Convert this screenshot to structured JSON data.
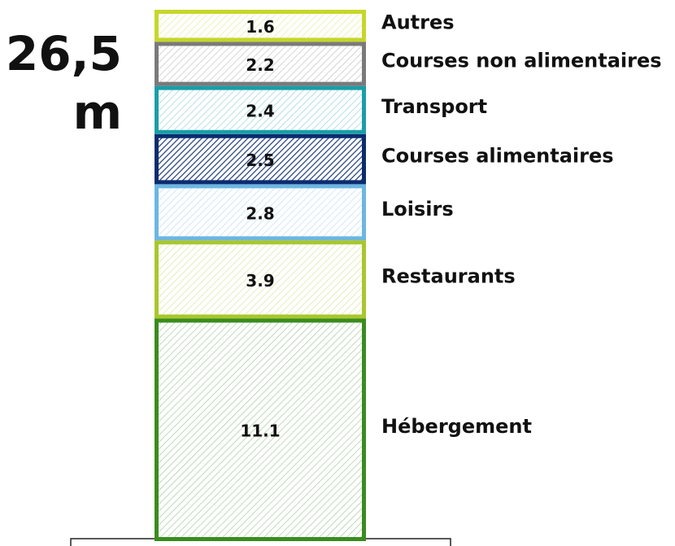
{
  "chart_data": {
    "type": "bar",
    "stacked": true,
    "title": "26,5 m",
    "categories": [
      null
    ],
    "series": [
      {
        "name": "Hébergement",
        "color": "#3a8c1f",
        "values": [
          11.1
        ]
      },
      {
        "name": "Restaurants",
        "color": "#a9c72c",
        "values": [
          3.9
        ]
      },
      {
        "name": "Loisirs",
        "color": "#6cb6e2",
        "values": [
          2.8
        ]
      },
      {
        "name": "Courses alimentaires",
        "color": "#0b2c6f",
        "values": [
          2.5
        ]
      },
      {
        "name": "Transport",
        "color": "#1a9ea8",
        "values": [
          2.4
        ]
      },
      {
        "name": "Courses non alimentaires",
        "color": "#7a7a7a",
        "values": [
          2.2
        ]
      },
      {
        "name": "Autres",
        "color": "#c6d72a",
        "values": [
          1.6
        ]
      }
    ],
    "ylim": [
      0,
      26.5
    ]
  }
}
